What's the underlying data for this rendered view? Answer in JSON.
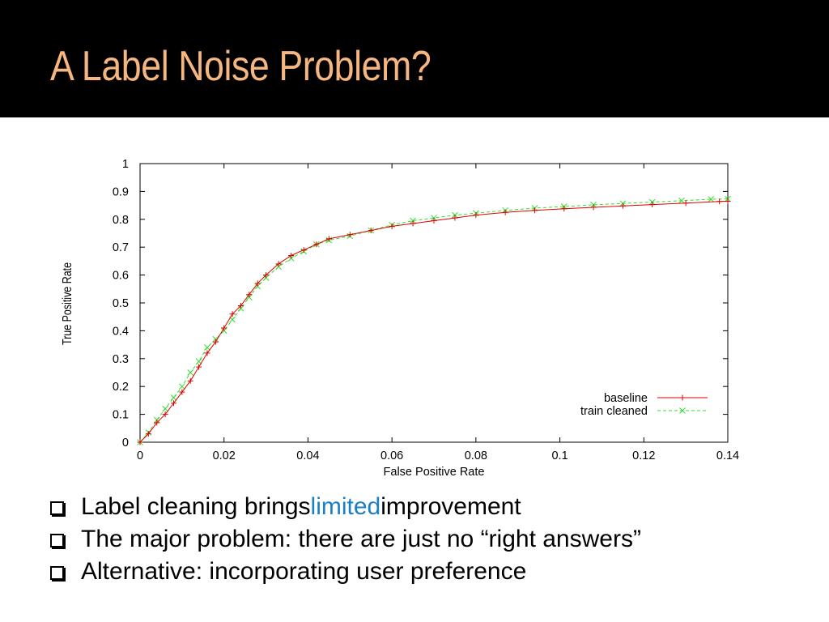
{
  "slide": {
    "title": "A Label Noise Problem?",
    "bullets": [
      {
        "pre": "Label cleaning brings ",
        "highlight": "limited",
        "post": " improvement"
      },
      {
        "pre": "The major problem: there are just no “right answers”",
        "highlight": "",
        "post": ""
      },
      {
        "pre": "Alternative: incorporating user preference",
        "highlight": "",
        "post": ""
      }
    ],
    "colors": {
      "title": "#f6b680",
      "highlight": "#1a7fc4",
      "bar": "#000000"
    }
  },
  "chart_data": {
    "type": "line",
    "title": "",
    "xlabel": "False Positive Rate",
    "ylabel": "True Positive Rate",
    "xlim": [
      0,
      0.14
    ],
    "ylim": [
      0,
      1
    ],
    "xticks": [
      "0",
      "0.02",
      "0.04",
      "0.06",
      "0.08",
      "0.1",
      "0.12",
      "0.14"
    ],
    "yticks": [
      "0",
      "0.1",
      "0.2",
      "0.3",
      "0.4",
      "0.5",
      "0.6",
      "0.7",
      "0.8",
      "0.9",
      "1"
    ],
    "legend_position": "bottom-right",
    "series": [
      {
        "name": "baseline",
        "color": "#e00000",
        "line_style": "solid",
        "marker": "+",
        "x": [
          0,
          0.002,
          0.004,
          0.006,
          0.008,
          0.01,
          0.012,
          0.014,
          0.016,
          0.018,
          0.02,
          0.022,
          0.024,
          0.026,
          0.028,
          0.03,
          0.033,
          0.036,
          0.039,
          0.042,
          0.045,
          0.05,
          0.055,
          0.06,
          0.065,
          0.07,
          0.075,
          0.08,
          0.087,
          0.094,
          0.101,
          0.108,
          0.115,
          0.122,
          0.13,
          0.138,
          0.14
        ],
        "y": [
          0,
          0.03,
          0.07,
          0.1,
          0.14,
          0.18,
          0.22,
          0.27,
          0.32,
          0.36,
          0.41,
          0.46,
          0.49,
          0.53,
          0.57,
          0.6,
          0.64,
          0.67,
          0.69,
          0.71,
          0.73,
          0.745,
          0.76,
          0.775,
          0.785,
          0.795,
          0.805,
          0.815,
          0.825,
          0.832,
          0.838,
          0.843,
          0.848,
          0.853,
          0.858,
          0.864,
          0.865
        ]
      },
      {
        "name": "train cleaned",
        "color": "#33dd33",
        "line_style": "dashed",
        "marker": "x",
        "x": [
          0,
          0.002,
          0.004,
          0.006,
          0.008,
          0.01,
          0.012,
          0.014,
          0.016,
          0.018,
          0.02,
          0.022,
          0.024,
          0.026,
          0.028,
          0.03,
          0.033,
          0.036,
          0.039,
          0.042,
          0.045,
          0.05,
          0.055,
          0.06,
          0.065,
          0.07,
          0.075,
          0.08,
          0.087,
          0.094,
          0.101,
          0.108,
          0.115,
          0.122,
          0.129,
          0.136,
          0.14
        ],
        "y": [
          0,
          0.035,
          0.08,
          0.12,
          0.16,
          0.2,
          0.25,
          0.29,
          0.34,
          0.37,
          0.4,
          0.44,
          0.48,
          0.52,
          0.56,
          0.59,
          0.63,
          0.66,
          0.685,
          0.71,
          0.725,
          0.74,
          0.76,
          0.78,
          0.795,
          0.805,
          0.815,
          0.822,
          0.832,
          0.84,
          0.846,
          0.852,
          0.857,
          0.862,
          0.867,
          0.872,
          0.873
        ]
      }
    ]
  }
}
